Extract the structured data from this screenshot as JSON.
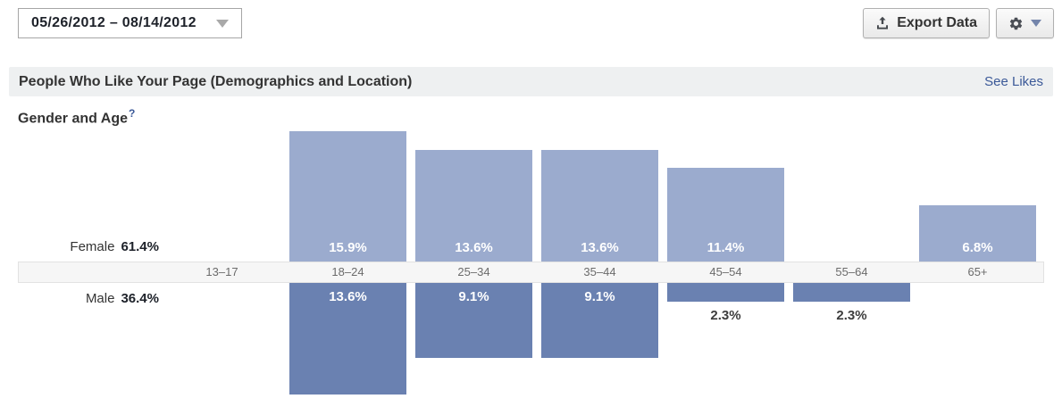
{
  "toolbar": {
    "date_range": "05/26/2012 – 08/14/2012",
    "export_label": "Export Data"
  },
  "section_header": {
    "title": "People Who Like Your Page (Demographics and Location)",
    "link_label": "See Likes"
  },
  "chart_data": {
    "type": "bar",
    "title": "Gender and Age",
    "help_glyph": "?",
    "orientation": "mirrored-vertical",
    "axis_position": "middle",
    "legend_position": "left",
    "value_suffix": "%",
    "categories": [
      "13–17",
      "18–24",
      "25–34",
      "35–44",
      "45–54",
      "55–64",
      "65+"
    ],
    "series": [
      {
        "name": "Female",
        "total": "61.4%",
        "direction": "up",
        "color": "#9babce",
        "values": [
          null,
          15.9,
          13.6,
          13.6,
          11.4,
          null,
          6.8
        ]
      },
      {
        "name": "Male",
        "total": "36.4%",
        "direction": "down",
        "color": "#6a81b1",
        "values": [
          null,
          13.6,
          9.1,
          9.1,
          2.3,
          2.3,
          null
        ]
      }
    ]
  },
  "colors": {
    "link_blue": "#3b5998",
    "section_bar_bg": "#eef0f1",
    "axis_strip_bg": "#f6f6f6",
    "female_bar": "#9babce",
    "male_bar": "#6a81b1"
  }
}
